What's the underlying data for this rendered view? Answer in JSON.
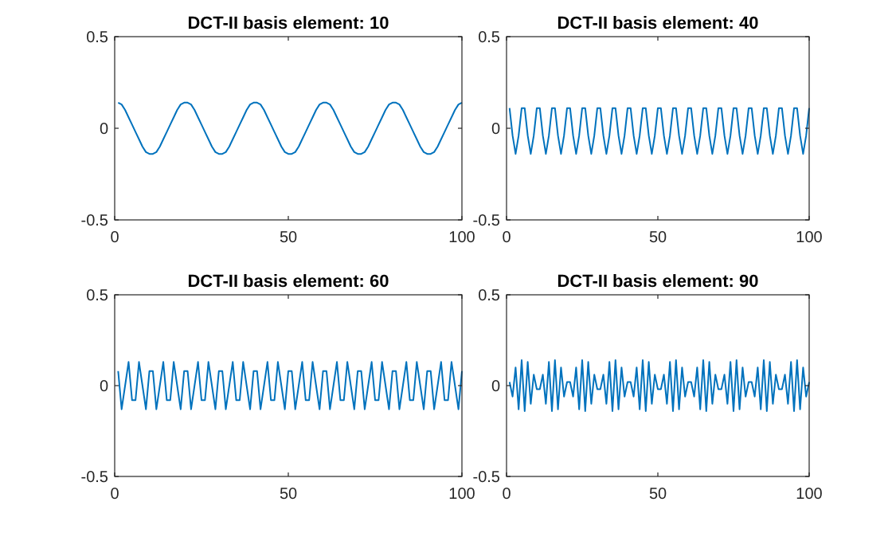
{
  "chart_data": [
    {
      "type": "line",
      "title": "DCT-II basis element: 10",
      "xlim": [
        0,
        100
      ],
      "xticks": [
        0,
        50,
        100
      ],
      "ylim": [
        -0.5,
        0.5
      ],
      "yticks": [
        -0.5,
        0,
        0.5
      ],
      "x": [
        1,
        2,
        3,
        4,
        5,
        6,
        7,
        8,
        9,
        10,
        11,
        12,
        13,
        14,
        15,
        16,
        17,
        18,
        19,
        20,
        21,
        22,
        23,
        24,
        25,
        26,
        27,
        28,
        29,
        30,
        31,
        32,
        33,
        34,
        35,
        36,
        37,
        38,
        39,
        40,
        41,
        42,
        43,
        44,
        45,
        46,
        47,
        48,
        49,
        50,
        51,
        52,
        53,
        54,
        55,
        56,
        57,
        58,
        59,
        60,
        61,
        62,
        63,
        64,
        65,
        66,
        67,
        68,
        69,
        70,
        71,
        72,
        73,
        74,
        75,
        76,
        77,
        78,
        79,
        80,
        81,
        82,
        83,
        84,
        85,
        86,
        87,
        88,
        89,
        90,
        91,
        92,
        93,
        94,
        95,
        96,
        97,
        98,
        99,
        100
      ],
      "series": [
        {
          "color": "#0072bd",
          "values": [
            0.14,
            0.13,
            0.1,
            0.06,
            0.02,
            -0.02,
            -0.06,
            -0.1,
            -0.13,
            -0.14,
            -0.14,
            -0.13,
            -0.1,
            -0.06,
            -0.02,
            0.02,
            0.06,
            0.1,
            0.13,
            0.14,
            0.14,
            0.13,
            0.1,
            0.06,
            0.02,
            -0.02,
            -0.06,
            -0.1,
            -0.13,
            -0.14,
            -0.14,
            -0.13,
            -0.1,
            -0.06,
            -0.02,
            0.02,
            0.06,
            0.1,
            0.13,
            0.14,
            0.14,
            0.13,
            0.1,
            0.06,
            0.02,
            -0.02,
            -0.06,
            -0.1,
            -0.13,
            -0.14,
            -0.14,
            -0.13,
            -0.1,
            -0.06,
            -0.02,
            0.02,
            0.06,
            0.1,
            0.13,
            0.14,
            0.14,
            0.13,
            0.1,
            0.06,
            0.02,
            -0.02,
            -0.06,
            -0.1,
            -0.13,
            -0.14,
            -0.14,
            -0.13,
            -0.1,
            -0.06,
            -0.02,
            0.02,
            0.06,
            0.1,
            0.13,
            0.14,
            0.14,
            0.13,
            0.1,
            0.06,
            0.02,
            -0.02,
            -0.06,
            -0.1,
            -0.13,
            -0.14,
            -0.14,
            -0.13,
            -0.1,
            -0.06,
            -0.02,
            0.02,
            0.06,
            0.1,
            0.13,
            0.14
          ]
        }
      ]
    },
    {
      "type": "line",
      "title": "DCT-II basis element: 40",
      "xlim": [
        0,
        100
      ],
      "xticks": [
        0,
        50,
        100
      ],
      "ylim": [
        -0.5,
        0.5
      ],
      "yticks": [
        -0.5,
        0,
        0.5
      ],
      "x": [
        1,
        2,
        3,
        4,
        5,
        6,
        7,
        8,
        9,
        10,
        11,
        12,
        13,
        14,
        15,
        16,
        17,
        18,
        19,
        20,
        21,
        22,
        23,
        24,
        25,
        26,
        27,
        28,
        29,
        30,
        31,
        32,
        33,
        34,
        35,
        36,
        37,
        38,
        39,
        40,
        41,
        42,
        43,
        44,
        45,
        46,
        47,
        48,
        49,
        50,
        51,
        52,
        53,
        54,
        55,
        56,
        57,
        58,
        59,
        60,
        61,
        62,
        63,
        64,
        65,
        66,
        67,
        68,
        69,
        70,
        71,
        72,
        73,
        74,
        75,
        76,
        77,
        78,
        79,
        80,
        81,
        82,
        83,
        84,
        85,
        86,
        87,
        88,
        89,
        90,
        91,
        92,
        93,
        94,
        95,
        96,
        97,
        98,
        99,
        100
      ],
      "series": [
        {
          "color": "#0072bd",
          "values": [
            0.11,
            -0.04,
            -0.14,
            -0.04,
            0.11,
            0.11,
            -0.04,
            -0.14,
            -0.04,
            0.11,
            0.11,
            -0.04,
            -0.14,
            -0.04,
            0.11,
            0.11,
            -0.04,
            -0.14,
            -0.04,
            0.11,
            0.11,
            -0.04,
            -0.14,
            -0.04,
            0.11,
            0.11,
            -0.04,
            -0.14,
            -0.04,
            0.11,
            0.11,
            -0.04,
            -0.14,
            -0.04,
            0.11,
            0.11,
            -0.04,
            -0.14,
            -0.04,
            0.11,
            0.11,
            -0.04,
            -0.14,
            -0.04,
            0.11,
            0.11,
            -0.04,
            -0.14,
            -0.04,
            0.11,
            0.11,
            -0.04,
            -0.14,
            -0.04,
            0.11,
            0.11,
            -0.04,
            -0.14,
            -0.04,
            0.11,
            0.11,
            -0.04,
            -0.14,
            -0.04,
            0.11,
            0.11,
            -0.04,
            -0.14,
            -0.04,
            0.11,
            0.11,
            -0.04,
            -0.14,
            -0.04,
            0.11,
            0.11,
            -0.04,
            -0.14,
            -0.04,
            0.11,
            0.11,
            -0.04,
            -0.14,
            -0.04,
            0.11,
            0.11,
            -0.04,
            -0.14,
            -0.04,
            0.11,
            0.11,
            -0.04,
            -0.14,
            -0.04,
            0.11,
            0.11,
            -0.04,
            -0.14,
            -0.04,
            0.11
          ]
        }
      ]
    },
    {
      "type": "line",
      "title": "DCT-II basis element: 60",
      "xlim": [
        0,
        100
      ],
      "xticks": [
        0,
        50,
        100
      ],
      "ylim": [
        -0.5,
        0.5
      ],
      "yticks": [
        -0.5,
        0,
        0.5
      ],
      "x": [
        1,
        2,
        3,
        4,
        5,
        6,
        7,
        8,
        9,
        10,
        11,
        12,
        13,
        14,
        15,
        16,
        17,
        18,
        19,
        20,
        21,
        22,
        23,
        24,
        25,
        26,
        27,
        28,
        29,
        30,
        31,
        32,
        33,
        34,
        35,
        36,
        37,
        38,
        39,
        40,
        41,
        42,
        43,
        44,
        45,
        46,
        47,
        48,
        49,
        50,
        51,
        52,
        53,
        54,
        55,
        56,
        57,
        58,
        59,
        60,
        61,
        62,
        63,
        64,
        65,
        66,
        67,
        68,
        69,
        70,
        71,
        72,
        73,
        74,
        75,
        76,
        77,
        78,
        79,
        80,
        81,
        82,
        83,
        84,
        85,
        86,
        87,
        88,
        89,
        90,
        91,
        92,
        93,
        94,
        95,
        96,
        97,
        98,
        99,
        100
      ],
      "series": [
        {
          "color": "#0072bd",
          "values": [
            0.08,
            -0.13,
            0,
            0.13,
            -0.08,
            -0.08,
            0.13,
            0,
            -0.13,
            0.08,
            0.08,
            -0.13,
            0,
            0.13,
            -0.08,
            -0.08,
            0.13,
            0,
            -0.13,
            0.08,
            0.08,
            -0.13,
            0,
            0.13,
            -0.08,
            -0.08,
            0.13,
            0,
            -0.13,
            0.08,
            0.08,
            -0.13,
            0,
            0.13,
            -0.08,
            -0.08,
            0.13,
            0,
            -0.13,
            0.08,
            0.08,
            -0.13,
            0,
            0.13,
            -0.08,
            -0.08,
            0.13,
            0,
            -0.13,
            0.08,
            0.08,
            -0.13,
            0,
            0.13,
            -0.08,
            -0.08,
            0.13,
            0,
            -0.13,
            0.08,
            0.08,
            -0.13,
            0,
            0.13,
            -0.08,
            -0.08,
            0.13,
            0,
            -0.13,
            0.08,
            0.08,
            -0.13,
            0,
            0.13,
            -0.08,
            -0.08,
            0.13,
            0,
            -0.13,
            0.08,
            0.08,
            -0.13,
            0,
            0.13,
            -0.08,
            -0.08,
            0.13,
            0,
            -0.13,
            0.08,
            0.08,
            -0.13,
            0,
            0.13,
            -0.08,
            -0.08,
            0.13,
            0,
            -0.13,
            0.08
          ]
        }
      ]
    },
    {
      "type": "line",
      "title": "DCT-II basis element: 90",
      "xlim": [
        0,
        100
      ],
      "xticks": [
        0,
        50,
        100
      ],
      "ylim": [
        -0.5,
        0.5
      ],
      "yticks": [
        -0.5,
        0,
        0.5
      ],
      "x": [
        1,
        2,
        3,
        4,
        5,
        6,
        7,
        8,
        9,
        10,
        11,
        12,
        13,
        14,
        15,
        16,
        17,
        18,
        19,
        20,
        21,
        22,
        23,
        24,
        25,
        26,
        27,
        28,
        29,
        30,
        31,
        32,
        33,
        34,
        35,
        36,
        37,
        38,
        39,
        40,
        41,
        42,
        43,
        44,
        45,
        46,
        47,
        48,
        49,
        50,
        51,
        52,
        53,
        54,
        55,
        56,
        57,
        58,
        59,
        60,
        61,
        62,
        63,
        64,
        65,
        66,
        67,
        68,
        69,
        70,
        71,
        72,
        73,
        74,
        75,
        76,
        77,
        78,
        79,
        80,
        81,
        82,
        83,
        84,
        85,
        86,
        87,
        88,
        89,
        90,
        91,
        92,
        93,
        94,
        95,
        96,
        97,
        98,
        99,
        100
      ],
      "series": [
        {
          "color": "#0072bd",
          "values": [
            0.02,
            -0.06,
            0.1,
            -0.13,
            0.14,
            -0.14,
            0.13,
            -0.1,
            0.06,
            -0.02,
            -0.02,
            0.06,
            -0.1,
            0.13,
            -0.14,
            0.14,
            -0.13,
            0.1,
            -0.06,
            0.02,
            0.02,
            -0.06,
            0.1,
            -0.13,
            0.14,
            -0.14,
            0.13,
            -0.1,
            0.06,
            -0.02,
            -0.02,
            0.06,
            -0.1,
            0.13,
            -0.14,
            0.14,
            -0.13,
            0.1,
            -0.06,
            0.02,
            0.02,
            -0.06,
            0.1,
            -0.13,
            0.14,
            -0.14,
            0.13,
            -0.1,
            0.06,
            -0.02,
            -0.02,
            0.06,
            -0.1,
            0.13,
            -0.14,
            0.14,
            -0.13,
            0.1,
            -0.06,
            0.02,
            0.02,
            -0.06,
            0.1,
            -0.13,
            0.14,
            -0.14,
            0.13,
            -0.1,
            0.06,
            -0.02,
            -0.02,
            0.06,
            -0.1,
            0.13,
            -0.14,
            0.14,
            -0.13,
            0.1,
            -0.06,
            0.02,
            0.02,
            -0.06,
            0.1,
            -0.13,
            0.14,
            -0.14,
            0.13,
            -0.1,
            0.06,
            -0.02,
            -0.02,
            0.06,
            -0.1,
            0.13,
            -0.14,
            0.14,
            -0.13,
            0.1,
            -0.06,
            0.02
          ]
        }
      ]
    }
  ]
}
